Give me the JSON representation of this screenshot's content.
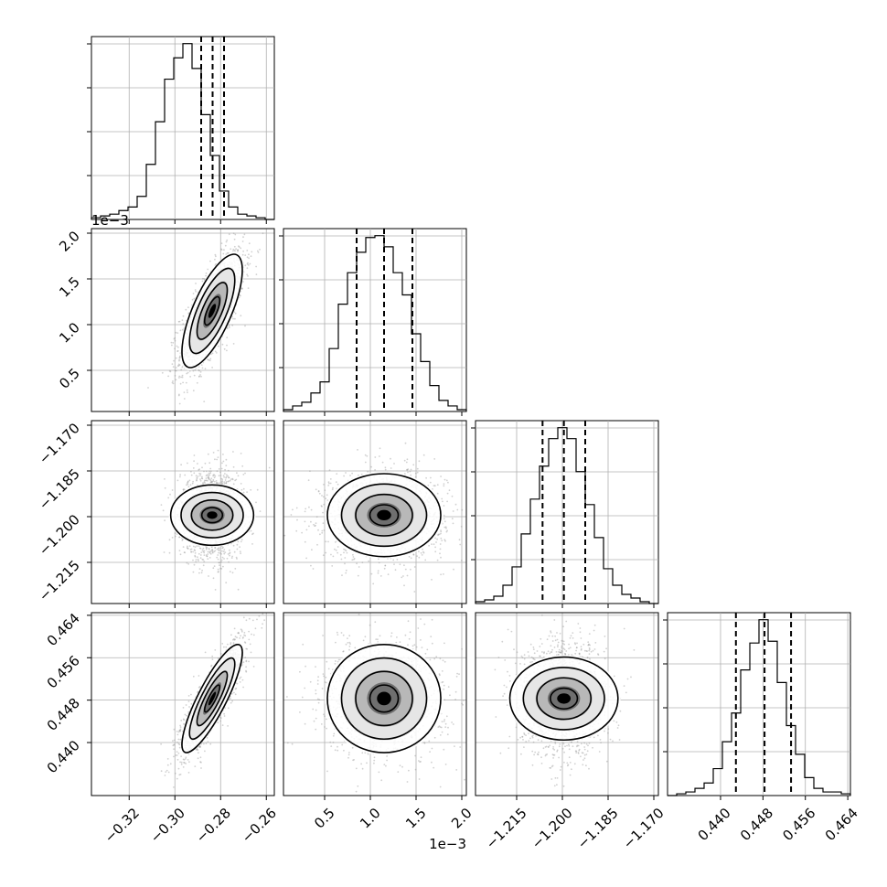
{
  "chart_data": {
    "type": "corner",
    "parameters": [
      {
        "quantiles": [
          -0.2885,
          -0.2835,
          -0.2785
        ],
        "offset_text": "",
        "tick_labels": [
          "−0.32",
          "−0.30",
          "−0.28",
          "−0.26"
        ],
        "ticks": [
          -0.32,
          -0.3,
          -0.28,
          -0.26
        ],
        "range": [
          -0.3365,
          -0.2565
        ],
        "mean": -0.2837,
        "sd": 0.0066,
        "hist_counts": [
          0.01,
          0.02,
          0.03,
          0.05,
          0.07,
          0.13,
          0.31,
          0.55,
          0.79,
          0.91,
          0.99,
          0.85,
          0.59,
          0.36,
          0.16,
          0.07,
          0.03,
          0.02,
          0.01,
          0.0
        ]
      },
      {
        "quantiles": [
          0.85,
          1.15,
          1.46
        ],
        "offset_text": "1e−3",
        "tick_labels": [
          "0.5",
          "1.0",
          "1.5",
          "2.0"
        ],
        "ticks": [
          0.5,
          1.0,
          1.5,
          2.0
        ],
        "range": [
          0.05,
          2.05
        ],
        "mean": 1.15,
        "sd": 0.31,
        "hist_counts": [
          0.01,
          0.03,
          0.05,
          0.1,
          0.16,
          0.34,
          0.58,
          0.75,
          0.86,
          0.94,
          0.95,
          0.89,
          0.75,
          0.63,
          0.42,
          0.27,
          0.14,
          0.06,
          0.03,
          0.01
        ]
      },
      {
        "quantiles": [
          -1.2065,
          -1.1995,
          -1.1925
        ],
        "offset_text": "",
        "tick_labels": [
          "−1.215",
          "−1.200",
          "−1.185",
          "−1.170"
        ],
        "ticks": [
          -1.215,
          -1.2,
          -1.185,
          -1.17
        ],
        "range": [
          -1.2285,
          -1.1685
        ],
        "mean": -1.1995,
        "sd": 0.0068,
        "hist_counts": [
          0.01,
          0.02,
          0.04,
          0.1,
          0.2,
          0.38,
          0.57,
          0.75,
          0.9,
          0.96,
          0.9,
          0.72,
          0.54,
          0.36,
          0.19,
          0.1,
          0.05,
          0.03,
          0.01,
          0.0
        ]
      },
      {
        "quantiles": [
          0.4429,
          0.4483,
          0.4533
        ],
        "offset_text": "",
        "tick_labels": [
          "0.440",
          "0.448",
          "0.456",
          "0.464"
        ],
        "ticks": [
          0.44,
          0.448,
          0.456,
          0.464
        ],
        "range": [
          0.43,
          0.4645
        ],
        "mean": 0.4483,
        "sd": 0.0051,
        "hist_counts": [
          0.0,
          0.01,
          0.02,
          0.04,
          0.07,
          0.15,
          0.3,
          0.46,
          0.7,
          0.85,
          0.98,
          0.86,
          0.63,
          0.39,
          0.23,
          0.1,
          0.04,
          0.02,
          0.02,
          0.01
        ]
      }
    ],
    "correlations": [
      [
        1,
        0.72,
        0.0,
        0.85
      ],
      [
        0.72,
        1,
        0.0,
        0.0
      ],
      [
        0.0,
        0.0,
        1,
        0.0
      ],
      [
        0.85,
        0.0,
        0.0,
        1
      ]
    ],
    "grid": true,
    "contour_levels": [
      0.5,
      1.0,
      1.5,
      2.0
    ]
  }
}
